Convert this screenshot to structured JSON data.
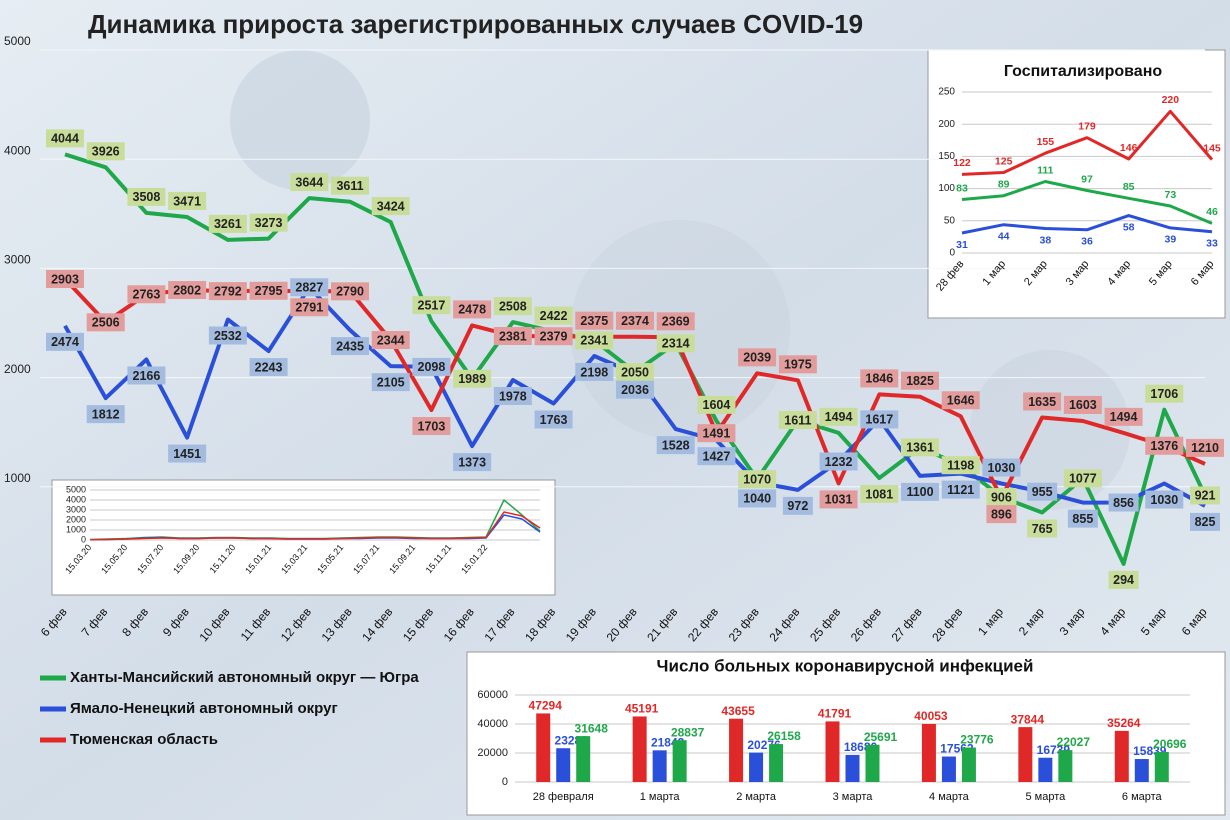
{
  "chart_data": [
    {
      "type": "line",
      "title": "Динамика прироста зарегистрированных случаев COVID-19",
      "categories": [
        "6 фев",
        "7 фев",
        "8 фев",
        "9 фев",
        "10 фев",
        "11 фев",
        "12 фев",
        "13 фев",
        "14 фев",
        "15 фев",
        "16 фев",
        "17 фев",
        "18 фев",
        "19 фев",
        "20 фев",
        "21 фев",
        "22 фев",
        "23 фев",
        "24 фев",
        "25 фев",
        "26 фев",
        "27 фев",
        "28 фев",
        "1 мар",
        "2 мар",
        "3 мар",
        "4 мар",
        "5 мар",
        "6 мар"
      ],
      "series": [
        {
          "name": "Ханты-Мансийский автономный округ — Югра",
          "color": "#1fa84a",
          "label_color": "#c9dd9a",
          "values": [
            4044,
            3926,
            3508,
            3471,
            3261,
            3273,
            3644,
            3611,
            3424,
            2517,
            1989,
            2508,
            2422,
            2341,
            2050,
            2314,
            1604,
            1070,
            1611,
            1494,
            1081,
            1361,
            1198,
            906,
            765,
            1077,
            294,
            1706,
            921
          ]
        },
        {
          "name": "Ямало-Ненецкий автономный округ",
          "color": "#2a4fd8",
          "label_color": "#a3bbdf",
          "values": [
            2474,
            1812,
            2166,
            1451,
            2532,
            2243,
            2827,
            2435,
            2105,
            2098,
            1373,
            1978,
            1763,
            2198,
            2036,
            1528,
            1427,
            1040,
            972,
            1232,
            1617,
            1100,
            1121,
            1030,
            955,
            855,
            856,
            1030,
            825
          ]
        },
        {
          "name": "Тюменская область",
          "color": "#e02828",
          "label_color": "#e39c9c",
          "values": [
            2903,
            2506,
            2763,
            2802,
            2792,
            2795,
            2791,
            2790,
            2344,
            1703,
            2478,
            2381,
            2379,
            2375,
            2374,
            2369,
            1491,
            2039,
            1975,
            1031,
            1846,
            1825,
            1646,
            896,
            1635,
            1603,
            1494,
            1376,
            1210
          ]
        }
      ],
      "ylim": [
        0,
        5000
      ],
      "yticks": [
        1000,
        2000,
        3000,
        4000,
        5000
      ],
      "grid": true,
      "legend": "bottom-left"
    },
    {
      "type": "line",
      "categories": [
        "15.03.20",
        null,
        "15.05.20",
        null,
        "15.07.20",
        null,
        "15.09.20",
        null,
        "15.11.20",
        null,
        "15.01.21",
        null,
        "15.03.21",
        null,
        "15.05.21",
        null,
        "15.07.21",
        null,
        "15.09.21",
        null,
        "15.11.21",
        null,
        "15.01.22",
        null,
        null,
        null
      ],
      "series": [
        {
          "color": "#1fa84a",
          "values": [
            50,
            100,
            150,
            250,
            300,
            200,
            200,
            250,
            250,
            200,
            200,
            150,
            150,
            150,
            200,
            250,
            300,
            300,
            250,
            200,
            200,
            250,
            300,
            4000,
            2500,
            900
          ]
        },
        {
          "color": "#2a4fd8",
          "values": [
            20,
            50,
            100,
            200,
            250,
            150,
            150,
            200,
            200,
            150,
            150,
            100,
            100,
            100,
            150,
            150,
            200,
            200,
            150,
            150,
            150,
            150,
            200,
            2500,
            2100,
            800
          ]
        },
        {
          "color": "#e02828",
          "values": [
            20,
            50,
            100,
            150,
            200,
            150,
            150,
            200,
            200,
            150,
            150,
            100,
            100,
            100,
            150,
            200,
            250,
            250,
            200,
            150,
            150,
            200,
            250,
            2800,
            2400,
            1200
          ]
        }
      ],
      "ylim": [
        0,
        5000
      ],
      "yticks": [
        0,
        1000,
        2000,
        3000,
        4000,
        5000
      ],
      "grid": true
    },
    {
      "type": "line",
      "title": "Госпитализировано",
      "categories": [
        "28 фев",
        "1 мар",
        "2 мар",
        "3 мар",
        "4 мар",
        "5 мар",
        "6 мар"
      ],
      "series": [
        {
          "color": "#e02828",
          "values": [
            122,
            125,
            155,
            179,
            146,
            220,
            145
          ]
        },
        {
          "color": "#1fa84a",
          "values": [
            83,
            89,
            111,
            97,
            85,
            73,
            46
          ]
        },
        {
          "color": "#2a4fd8",
          "values": [
            31,
            44,
            38,
            36,
            58,
            39,
            33
          ]
        }
      ],
      "ylim": [
        0,
        250
      ],
      "yticks": [
        0,
        50,
        100,
        150,
        200,
        250
      ],
      "grid": true
    },
    {
      "type": "bar",
      "title": "Число больных  коронавирусной  инфекцией",
      "categories": [
        "28 февраля",
        "1 марта",
        "2 марта",
        "3 марта",
        "4 марта",
        "5 марта",
        "6 марта"
      ],
      "series": [
        {
          "color": "#e02828",
          "values": [
            47294,
            45191,
            43655,
            41791,
            40053,
            37844,
            35264
          ]
        },
        {
          "color": "#2a4fd8",
          "values": [
            23289,
            21843,
            20276,
            18680,
            17562,
            16739,
            15839
          ]
        },
        {
          "color": "#1fa84a",
          "values": [
            31648,
            28837,
            26158,
            25691,
            23776,
            22027,
            20696
          ]
        }
      ],
      "ylim": [
        0,
        60000
      ],
      "yticks": [
        0,
        20000,
        40000,
        60000
      ],
      "grid": true
    }
  ]
}
